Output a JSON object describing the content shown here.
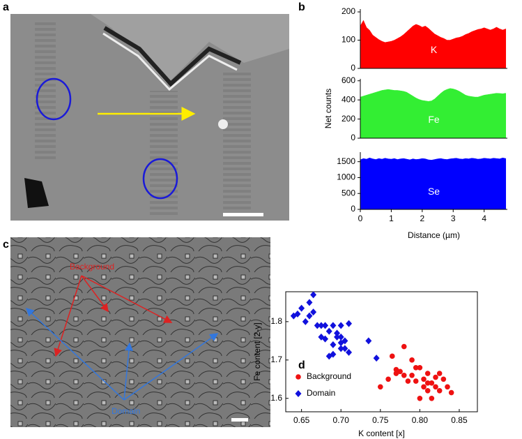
{
  "figure": {
    "panel_labels": [
      "a",
      "b",
      "c",
      "d"
    ],
    "image_c_labels": [
      "Background",
      "Domain"
    ]
  },
  "chart_data": [
    {
      "type": "area",
      "xlim": [
        0,
        4.75
      ],
      "ylim": [
        0,
        210
      ],
      "yticks": [
        0,
        100,
        200
      ],
      "x": [
        0,
        0.1,
        0.2,
        0.3,
        0.4,
        0.5,
        0.6,
        0.7,
        0.8,
        0.9,
        1,
        1.1,
        1.2,
        1.3,
        1.4,
        1.5,
        1.6,
        1.7,
        1.8,
        1.9,
        2,
        2.1,
        2.2,
        2.3,
        2.4,
        2.5,
        2.6,
        2.7,
        2.8,
        2.9,
        3,
        3.1,
        3.2,
        3.3,
        3.4,
        3.5,
        3.6,
        3.7,
        3.8,
        3.9,
        4,
        4.1,
        4.2,
        4.3,
        4.4,
        4.5,
        4.6,
        4.7
      ],
      "series": [
        {
          "name": "K",
          "color": "#ff0000",
          "values": [
            150,
            170,
            145,
            135,
            118,
            110,
            102,
            96,
            92,
            94,
            96,
            100,
            106,
            112,
            120,
            130,
            140,
            150,
            156,
            152,
            146,
            150,
            142,
            132,
            122,
            116,
            110,
            106,
            100,
            100,
            104,
            108,
            110,
            114,
            120,
            124,
            130,
            134,
            138,
            140,
            144,
            140,
            136,
            140,
            146,
            140,
            136,
            140
          ]
        }
      ]
    },
    {
      "type": "area",
      "xlim": [
        0,
        4.75
      ],
      "ylim": [
        0,
        620
      ],
      "yticks": [
        0,
        200,
        400,
        600
      ],
      "ylabel": "Net counts",
      "x": [
        0,
        0.1,
        0.2,
        0.3,
        0.4,
        0.5,
        0.6,
        0.7,
        0.8,
        0.9,
        1,
        1.1,
        1.2,
        1.3,
        1.4,
        1.5,
        1.6,
        1.7,
        1.8,
        1.9,
        2,
        2.1,
        2.2,
        2.3,
        2.4,
        2.5,
        2.6,
        2.7,
        2.8,
        2.9,
        3,
        3.1,
        3.2,
        3.3,
        3.4,
        3.5,
        3.6,
        3.7,
        3.8,
        3.9,
        4,
        4.1,
        4.2,
        4.3,
        4.4,
        4.5,
        4.6,
        4.7
      ],
      "series": [
        {
          "name": "Fe",
          "color": "#33ee33",
          "values": [
            430,
            440,
            450,
            460,
            470,
            480,
            490,
            500,
            505,
            510,
            505,
            500,
            500,
            495,
            490,
            480,
            460,
            440,
            420,
            405,
            395,
            390,
            385,
            390,
            410,
            440,
            470,
            495,
            510,
            520,
            515,
            505,
            490,
            470,
            450,
            440,
            435,
            430,
            430,
            440,
            450,
            455,
            460,
            465,
            470,
            468,
            465,
            470
          ]
        }
      ]
    },
    {
      "type": "area",
      "xlim": [
        0,
        4.75
      ],
      "ylim": [
        0,
        1800
      ],
      "xticks": [
        0,
        1,
        2,
        3,
        4
      ],
      "yticks": [
        0,
        500,
        1000,
        1500
      ],
      "xlabel": "Distance (µm)",
      "x": [
        0,
        0.1,
        0.2,
        0.3,
        0.4,
        0.5,
        0.6,
        0.7,
        0.8,
        0.9,
        1,
        1.1,
        1.2,
        1.3,
        1.4,
        1.5,
        1.6,
        1.7,
        1.8,
        1.9,
        2,
        2.1,
        2.2,
        2.3,
        2.4,
        2.5,
        2.6,
        2.7,
        2.8,
        2.9,
        3,
        3.1,
        3.2,
        3.3,
        3.4,
        3.5,
        3.6,
        3.7,
        3.8,
        3.9,
        4,
        4.1,
        4.2,
        4.3,
        4.4,
        4.5,
        4.6,
        4.7
      ],
      "series": [
        {
          "name": "Se",
          "color": "#0000ff",
          "values": [
            1560,
            1600,
            1580,
            1620,
            1590,
            1570,
            1600,
            1580,
            1610,
            1590,
            1580,
            1600,
            1570,
            1590,
            1600,
            1580,
            1560,
            1590,
            1570,
            1580,
            1600,
            1590,
            1560,
            1550,
            1570,
            1590,
            1600,
            1580,
            1570,
            1590,
            1600,
            1610,
            1590,
            1580,
            1600,
            1590,
            1610,
            1600,
            1580,
            1590,
            1610,
            1600,
            1590,
            1610,
            1600,
            1590,
            1620,
            1600
          ]
        }
      ]
    },
    {
      "type": "scatter",
      "xlabel": "K content [x]",
      "ylabel": "Fe content [2-y]",
      "xlim": [
        0.63,
        0.873
      ],
      "ylim": [
        1.565,
        1.878
      ],
      "xticks": [
        {
          "value": 0.65,
          "label": "0.65"
        },
        {
          "value": 0.7,
          "label": "0.70"
        },
        {
          "value": 0.75,
          "label": "0.75"
        },
        {
          "value": 0.8,
          "label": "0.80"
        },
        {
          "value": 0.85,
          "label": "0.85"
        }
      ],
      "yticks": [
        1.6,
        1.7,
        1.8
      ],
      "legend": "lower-left",
      "series": [
        {
          "name": "Background",
          "color": "#ee1111",
          "marker": "circle",
          "x": [
            0.75,
            0.76,
            0.765,
            0.77,
            0.775,
            0.78,
            0.78,
            0.785,
            0.79,
            0.79,
            0.795,
            0.8,
            0.8,
            0.805,
            0.81,
            0.81,
            0.815,
            0.82,
            0.82,
            0.825,
            0.83,
            0.835,
            0.84,
            0.815,
            0.805,
            0.77,
            0.795,
            0.825,
            0.81
          ],
          "y": [
            1.63,
            1.65,
            1.71,
            1.675,
            1.67,
            1.66,
            1.735,
            1.645,
            1.7,
            1.66,
            1.645,
            1.68,
            1.6,
            1.63,
            1.62,
            1.665,
            1.64,
            1.63,
            1.655,
            1.62,
            1.65,
            1.63,
            1.615,
            1.6,
            1.65,
            1.665,
            1.68,
            1.665,
            1.64
          ]
        },
        {
          "name": "Domain",
          "color": "#1111dd",
          "marker": "diamond",
          "x": [
            0.64,
            0.645,
            0.65,
            0.655,
            0.66,
            0.665,
            0.66,
            0.67,
            0.675,
            0.68,
            0.685,
            0.69,
            0.69,
            0.695,
            0.7,
            0.7,
            0.705,
            0.71,
            0.705,
            0.68,
            0.685,
            0.69,
            0.71,
            0.735,
            0.745,
            0.7,
            0.675,
            0.695,
            0.7,
            0.665
          ],
          "y": [
            1.815,
            1.82,
            1.835,
            1.8,
            1.85,
            1.87,
            1.815,
            1.79,
            1.79,
            1.755,
            1.775,
            1.74,
            1.79,
            1.77,
            1.76,
            1.79,
            1.75,
            1.795,
            1.73,
            1.79,
            1.71,
            1.715,
            1.72,
            1.75,
            1.705,
            1.745,
            1.76,
            1.76,
            1.73,
            1.825
          ]
        }
      ]
    }
  ]
}
